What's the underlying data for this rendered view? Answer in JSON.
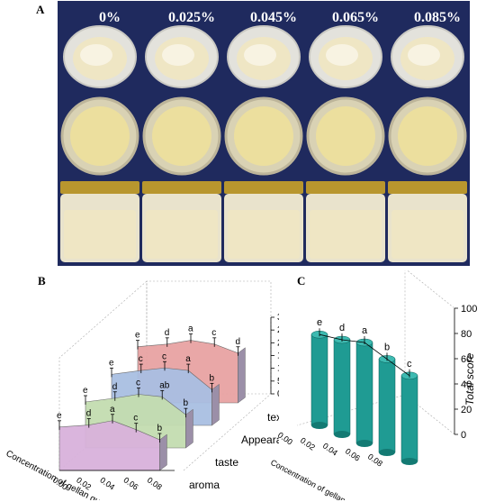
{
  "panels": {
    "a": "A",
    "b": "B",
    "c": "C"
  },
  "photo": {
    "concentrations": [
      "0%",
      "0.025%",
      "0.045%",
      "0.065%",
      "0.085%"
    ],
    "colors": {
      "background": "#1f2a5e",
      "cream": "#efe6c4",
      "lid": "#b8962e"
    }
  },
  "chart_data": [
    {
      "type": "area",
      "title": "",
      "xlabel": "Concentration of gellan gum (%)",
      "x": [
        0.0,
        0.025,
        0.045,
        0.065,
        0.085
      ],
      "x_ticks": [
        "0.00",
        "0.02",
        "0.04",
        "0.06",
        "0.08"
      ],
      "ylim": [
        0,
        30
      ],
      "y_ticks": [
        "0",
        "5",
        "10",
        "15",
        "20",
        "25",
        "30"
      ],
      "series": [
        {
          "name": "aroma",
          "values": [
            17.0,
            17.8,
            19.5,
            16.0,
            12.0
          ],
          "labels": [
            "e",
            "d",
            "a",
            "c",
            "b"
          ],
          "color": "#d9b2dc"
        },
        {
          "name": "taste",
          "values": [
            18.0,
            19.5,
            21.0,
            20.0,
            13.0
          ],
          "labels": [
            "e",
            "d",
            "c",
            "ab",
            "b"
          ],
          "color": "#c4ddb0"
        },
        {
          "name": "Appearance",
          "values": [
            20.0,
            21.5,
            22.5,
            21.5,
            14.0
          ],
          "labels": [
            "e",
            "c",
            "c",
            "a",
            "b"
          ],
          "color": "#a9bfe2"
        },
        {
          "name": "texture",
          "values": [
            22.0,
            23.0,
            24.5,
            23.0,
            19.5
          ],
          "labels": [
            "e",
            "d",
            "a",
            "c",
            "d"
          ],
          "color": "#e8a3a3"
        }
      ]
    },
    {
      "type": "bar",
      "title": "",
      "xlabel": "Concentration of gellan gum (%)",
      "ylabel": "Total score",
      "x_ticks": [
        "0.00",
        "0.02",
        "0.04",
        "0.06",
        "0.08"
      ],
      "categories": [
        "0.00",
        "0.025",
        "0.045",
        "0.065",
        "0.085"
      ],
      "values": [
        72,
        75,
        80,
        74,
        68
      ],
      "labels": [
        "e",
        "d",
        "a",
        "b",
        "c"
      ],
      "ylim": [
        0,
        100
      ],
      "y_ticks": [
        "0",
        "20",
        "40",
        "60",
        "80",
        "100"
      ],
      "bar_color": "#1f9b93"
    }
  ]
}
